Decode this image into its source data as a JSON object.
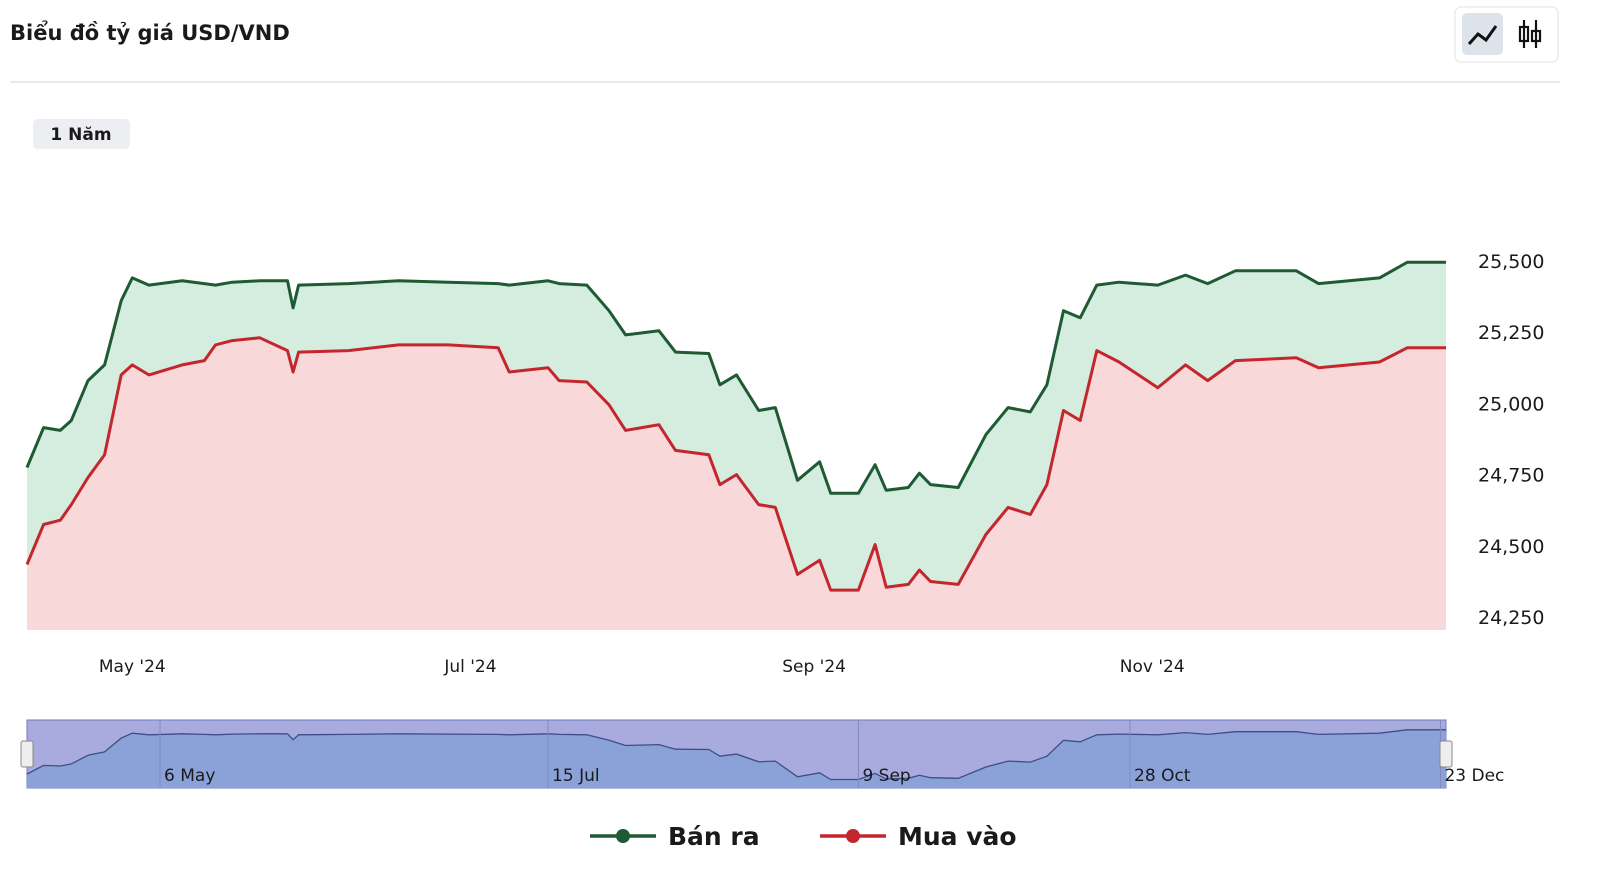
{
  "title": "Biểu đồ tỷ giá USD/VND",
  "range_button": "1 Năm",
  "chart_data": {
    "type": "area",
    "x": [
      "2024-04-12",
      "2024-04-15",
      "2024-04-18",
      "2024-04-20",
      "2024-04-23",
      "2024-04-26",
      "2024-04-29",
      "2024-05-01",
      "2024-05-04",
      "2024-05-10",
      "2024-05-14",
      "2024-05-16",
      "2024-05-19",
      "2024-05-24",
      "2024-05-29",
      "2024-05-30",
      "2024-05-31",
      "2024-06-09",
      "2024-06-18",
      "2024-06-27",
      "2024-07-06",
      "2024-07-08",
      "2024-07-15",
      "2024-07-17",
      "2024-07-22",
      "2024-07-26",
      "2024-07-29",
      "2024-08-04",
      "2024-08-07",
      "2024-08-13",
      "2024-08-15",
      "2024-08-18",
      "2024-08-22",
      "2024-08-25",
      "2024-08-29",
      "2024-09-02",
      "2024-09-04",
      "2024-09-09",
      "2024-09-12",
      "2024-09-14",
      "2024-09-18",
      "2024-09-20",
      "2024-09-22",
      "2024-09-27",
      "2024-10-02",
      "2024-10-06",
      "2024-10-10",
      "2024-10-13",
      "2024-10-16",
      "2024-10-19",
      "2024-10-22",
      "2024-10-26",
      "2024-11-02",
      "2024-11-07",
      "2024-11-11",
      "2024-11-16",
      "2024-11-27",
      "2024-12-01",
      "2024-12-12",
      "2024-12-17",
      "2024-12-24"
    ],
    "series": [
      {
        "name": "Bán ra",
        "color": "#1e5a32",
        "fill": "#d5eddf",
        "values": [
          24780,
          24920,
          24910,
          24945,
          25085,
          25140,
          25365,
          25445,
          25420,
          25435,
          25425,
          25420,
          25430,
          25435,
          25435,
          25340,
          25420,
          25425,
          25435,
          25430,
          25425,
          25420,
          25435,
          25425,
          25420,
          25330,
          25245,
          25260,
          25185,
          25180,
          25070,
          25105,
          24980,
          24990,
          24735,
          24800,
          24690,
          24690,
          24790,
          24700,
          24710,
          24760,
          24720,
          24710,
          24895,
          24990,
          24975,
          25070,
          25330,
          25305,
          25420,
          25430,
          25420,
          25455,
          25425,
          25470,
          25470,
          25425,
          25445,
          25500,
          25500
        ]
      },
      {
        "name": "Mua vào",
        "color": "#c4262e",
        "fill": "#f8d8d8",
        "values": [
          24440,
          24580,
          24595,
          24650,
          24745,
          24825,
          25105,
          25140,
          25105,
          25140,
          25155,
          25210,
          25225,
          25235,
          25190,
          25115,
          25185,
          25190,
          25210,
          25210,
          25200,
          25115,
          25130,
          25085,
          25080,
          25000,
          24910,
          24930,
          24840,
          24825,
          24720,
          24755,
          24650,
          24640,
          24405,
          24455,
          24350,
          24350,
          24510,
          24360,
          24370,
          24420,
          24380,
          24370,
          24545,
          24640,
          24615,
          24720,
          24980,
          24945,
          25190,
          25150,
          25060,
          25140,
          25085,
          25155,
          25165,
          25130,
          25150,
          25200,
          25200
        ]
      }
    ],
    "xlim": [
      "2024-04-12",
      "2024-12-24"
    ],
    "xticks": [
      {
        "value": "2024-05-01",
        "label": "May '24"
      },
      {
        "value": "2024-07-01",
        "label": "Jul '24"
      },
      {
        "value": "2024-09-01",
        "label": "Sep '24"
      },
      {
        "value": "2024-11-01",
        "label": "Nov '24"
      }
    ],
    "ylim": [
      24210,
      25550
    ],
    "yticks": [
      {
        "value": 24250,
        "label": "24,250"
      },
      {
        "value": 24500,
        "label": "24,500"
      },
      {
        "value": 24750,
        "label": "24,750"
      },
      {
        "value": 25000,
        "label": "25,000"
      },
      {
        "value": 25250,
        "label": "25,250"
      },
      {
        "value": 25500,
        "label": "25,500"
      }
    ],
    "grid": false,
    "legend": "bottom",
    "navigator": {
      "ticks": [
        {
          "value": "2024-05-06",
          "label": "6 May"
        },
        {
          "value": "2024-07-15",
          "label": "15 Jul"
        },
        {
          "value": "2024-09-09",
          "label": "9 Sep"
        },
        {
          "value": "2024-10-28",
          "label": "28 Oct"
        },
        {
          "value": "2024-12-23",
          "label": "23 Dec"
        }
      ]
    }
  }
}
